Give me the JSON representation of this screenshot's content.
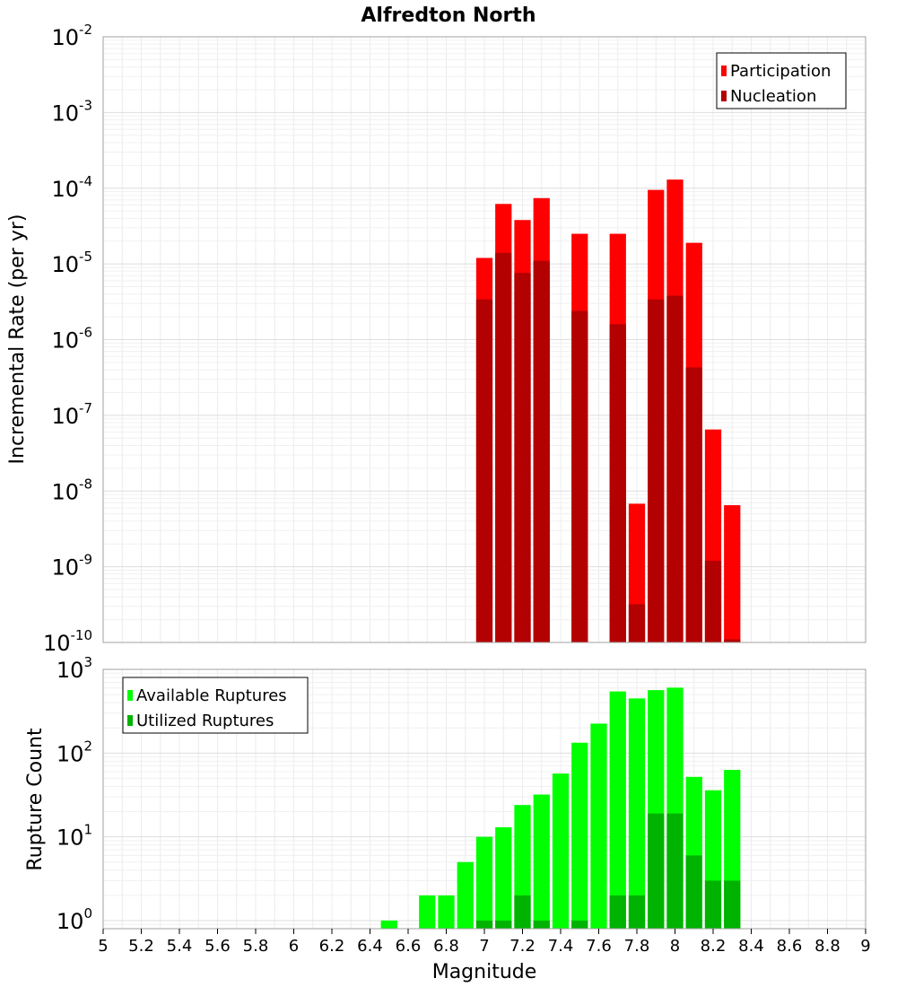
{
  "chart_data": [
    {
      "type": "bar",
      "title": "Alfredton North",
      "xlabel": "",
      "ylabel": "Incremental Rate (per yr)",
      "yscale": "log",
      "xlim": [
        5,
        9
      ],
      "ylim": [
        1e-10,
        0.01
      ],
      "ytick_exponents": [
        -2,
        -3,
        -4,
        -5,
        -6,
        -7,
        -8,
        -9,
        -10
      ],
      "legend_position": "top-right",
      "grid": true,
      "bin_width": 0.1,
      "series": [
        {
          "name": "Participation",
          "color": "#ff0000",
          "x": [
            7.0,
            7.1,
            7.2,
            7.3,
            7.5,
            7.7,
            7.8,
            7.9,
            8.0,
            8.1,
            8.2,
            8.3
          ],
          "values": [
            1.2e-05,
            6.2e-05,
            3.8e-05,
            7.4e-05,
            2.5e-05,
            2.5e-05,
            6.8e-09,
            9.5e-05,
            0.00013,
            1.9e-05,
            6.5e-08,
            6.5e-09
          ]
        },
        {
          "name": "Nucleation",
          "color": "#b30000",
          "x": [
            7.0,
            7.1,
            7.2,
            7.3,
            7.5,
            7.7,
            7.8,
            7.9,
            8.0,
            8.1,
            8.2,
            8.3
          ],
          "values": [
            3.4e-06,
            1.4e-05,
            7.6e-06,
            1.1e-05,
            2.4e-06,
            1.6e-06,
            3.2e-10,
            3.4e-06,
            3.8e-06,
            4.3e-07,
            1.2e-09,
            1.1e-10
          ]
        }
      ]
    },
    {
      "type": "bar",
      "title": "",
      "xlabel": "Magnitude",
      "ylabel": "Rupture Count",
      "yscale": "log",
      "xlim": [
        5,
        9
      ],
      "ylim": [
        0.8,
        1000
      ],
      "ytick_exponents": [
        3,
        2,
        1,
        0
      ],
      "xticks": [
        "5",
        "5.2",
        "5.4",
        "5.6",
        "5.8",
        "6",
        "6.2",
        "6.4",
        "6.6",
        "6.8",
        "7",
        "7.2",
        "7.4",
        "7.6",
        "7.8",
        "8",
        "8.2",
        "8.4",
        "8.6",
        "8.8",
        "9"
      ],
      "legend_position": "top-left",
      "grid": true,
      "bin_width": 0.1,
      "series": [
        {
          "name": "Available Ruptures",
          "color": "#00ff00",
          "x": [
            6.5,
            6.7,
            6.8,
            6.9,
            7.0,
            7.1,
            7.2,
            7.3,
            7.4,
            7.5,
            7.6,
            7.7,
            7.8,
            7.9,
            8.0,
            8.1,
            8.2,
            8.3
          ],
          "values": [
            1,
            2,
            2,
            5,
            10,
            13,
            24,
            32,
            57,
            133,
            225,
            545,
            450,
            565,
            605,
            52,
            36,
            63
          ]
        },
        {
          "name": "Utilized Ruptures",
          "color": "#00b300",
          "x": [
            7.0,
            7.1,
            7.2,
            7.3,
            7.5,
            7.7,
            7.8,
            7.9,
            8.0,
            8.1,
            8.2,
            8.3
          ],
          "values": [
            1,
            1,
            2,
            1,
            1,
            2,
            2,
            19,
            19,
            6,
            3,
            3
          ]
        }
      ]
    }
  ]
}
